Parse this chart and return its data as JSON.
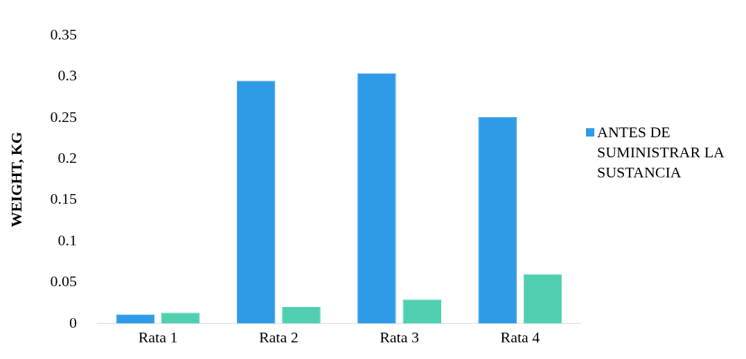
{
  "chart_data": {
    "type": "bar",
    "ylabel": "WEIGHT, KG",
    "categories": [
      "Rata 1",
      "Rata 2",
      "Rata 3",
      "Rata 4"
    ],
    "series": [
      {
        "name": "ANTES DE SUMINISTRAR LA SUSTANCIA",
        "color": "#2e9be8",
        "values": [
          0.011,
          0.295,
          0.304,
          0.251
        ]
      },
      {
        "color": "#4fcfb0",
        "values": [
          0.013,
          0.02,
          0.029,
          0.06
        ]
      }
    ],
    "ylim": [
      0,
      0.35
    ],
    "yticks": [
      0,
      0.05,
      0.1,
      0.15,
      0.2,
      0.25,
      0.3,
      0.35
    ],
    "grid": false,
    "legend": "right"
  }
}
